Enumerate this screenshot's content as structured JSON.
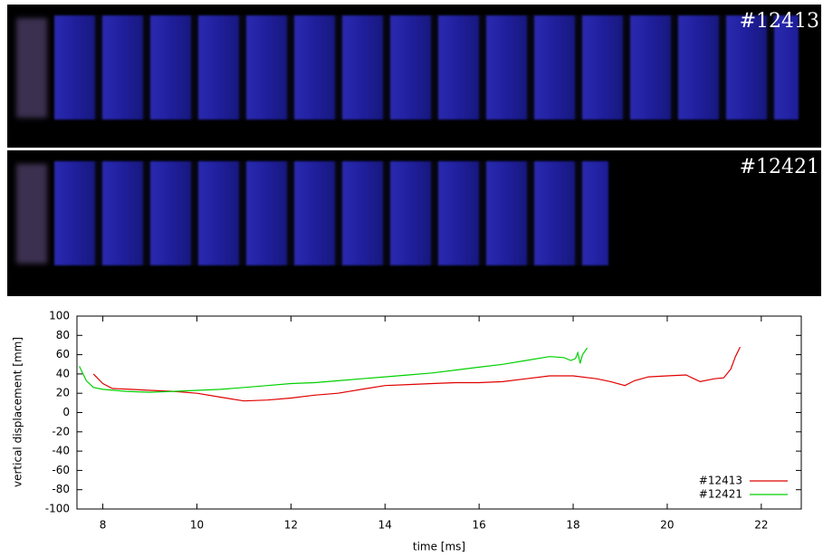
{
  "images": [
    {
      "label": "#12413"
    },
    {
      "label": "#12421"
    }
  ],
  "chart_data": {
    "type": "line",
    "xlabel": "time [ms]",
    "ylabel": "vertical displacement [mm]",
    "xlim": [
      7.45,
      22.85
    ],
    "ylim": [
      -100,
      100
    ],
    "xticks": [
      8,
      10,
      12,
      14,
      16,
      18,
      20,
      22
    ],
    "yticks": [
      -100,
      -80,
      -60,
      -40,
      -20,
      0,
      20,
      40,
      60,
      80,
      100
    ],
    "legend": "lower right",
    "series": [
      {
        "name": "#12413",
        "color": "#e00000",
        "x": [
          7.8,
          8.0,
          8.2,
          8.6,
          9.0,
          9.5,
          10.0,
          10.5,
          11.0,
          11.5,
          12.0,
          12.5,
          13.0,
          13.5,
          14.0,
          14.5,
          15.0,
          15.5,
          16.0,
          16.5,
          17.0,
          17.5,
          18.0,
          18.5,
          18.8,
          19.1,
          19.3,
          19.6,
          20.0,
          20.4,
          20.7,
          21.0,
          21.2,
          21.35,
          21.45,
          21.55
        ],
        "values": [
          40,
          30,
          25,
          24,
          23,
          22,
          20,
          16,
          12,
          13,
          15,
          18,
          20,
          24,
          28,
          29,
          30,
          31,
          31,
          32,
          35,
          38,
          38,
          35,
          32,
          28,
          33,
          37,
          38,
          39,
          32,
          35,
          36,
          45,
          58,
          68
        ]
      },
      {
        "name": "#12421",
        "color": "#00d000",
        "x": [
          7.5,
          7.65,
          7.8,
          8.0,
          8.5,
          9.0,
          9.5,
          10.0,
          10.5,
          11.0,
          11.5,
          12.0,
          12.5,
          13.0,
          13.5,
          14.0,
          14.5,
          15.0,
          15.5,
          16.0,
          16.5,
          17.0,
          17.5,
          17.8,
          17.95,
          18.05,
          18.1,
          18.15,
          18.2,
          18.3
        ],
        "values": [
          48,
          33,
          26,
          24,
          22,
          21,
          22,
          23,
          24,
          26,
          28,
          30,
          31,
          33,
          35,
          37,
          39,
          41,
          44,
          47,
          50,
          54,
          58,
          57,
          54,
          56,
          62,
          51,
          60,
          67
        ]
      }
    ]
  }
}
